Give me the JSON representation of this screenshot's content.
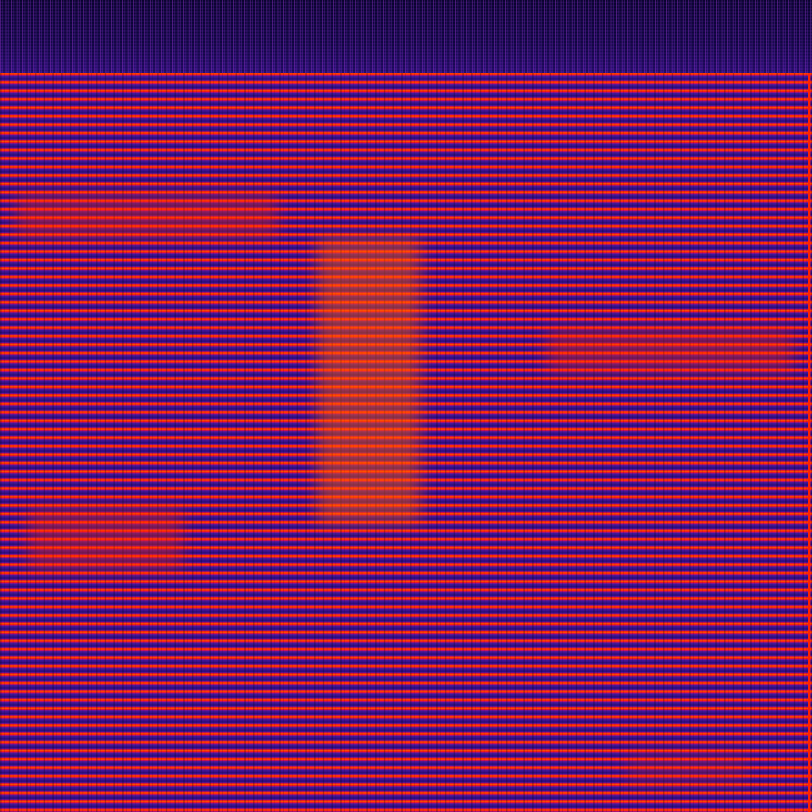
{
  "image": {
    "type": "spectrogram",
    "colormap": [
      "#0a0430",
      "#3a1290",
      "#c0107a",
      "#ff1a00",
      "#ffa000"
    ],
    "harmonic_line_color": "#ff1a00",
    "background_color": "#3a1290"
  }
}
